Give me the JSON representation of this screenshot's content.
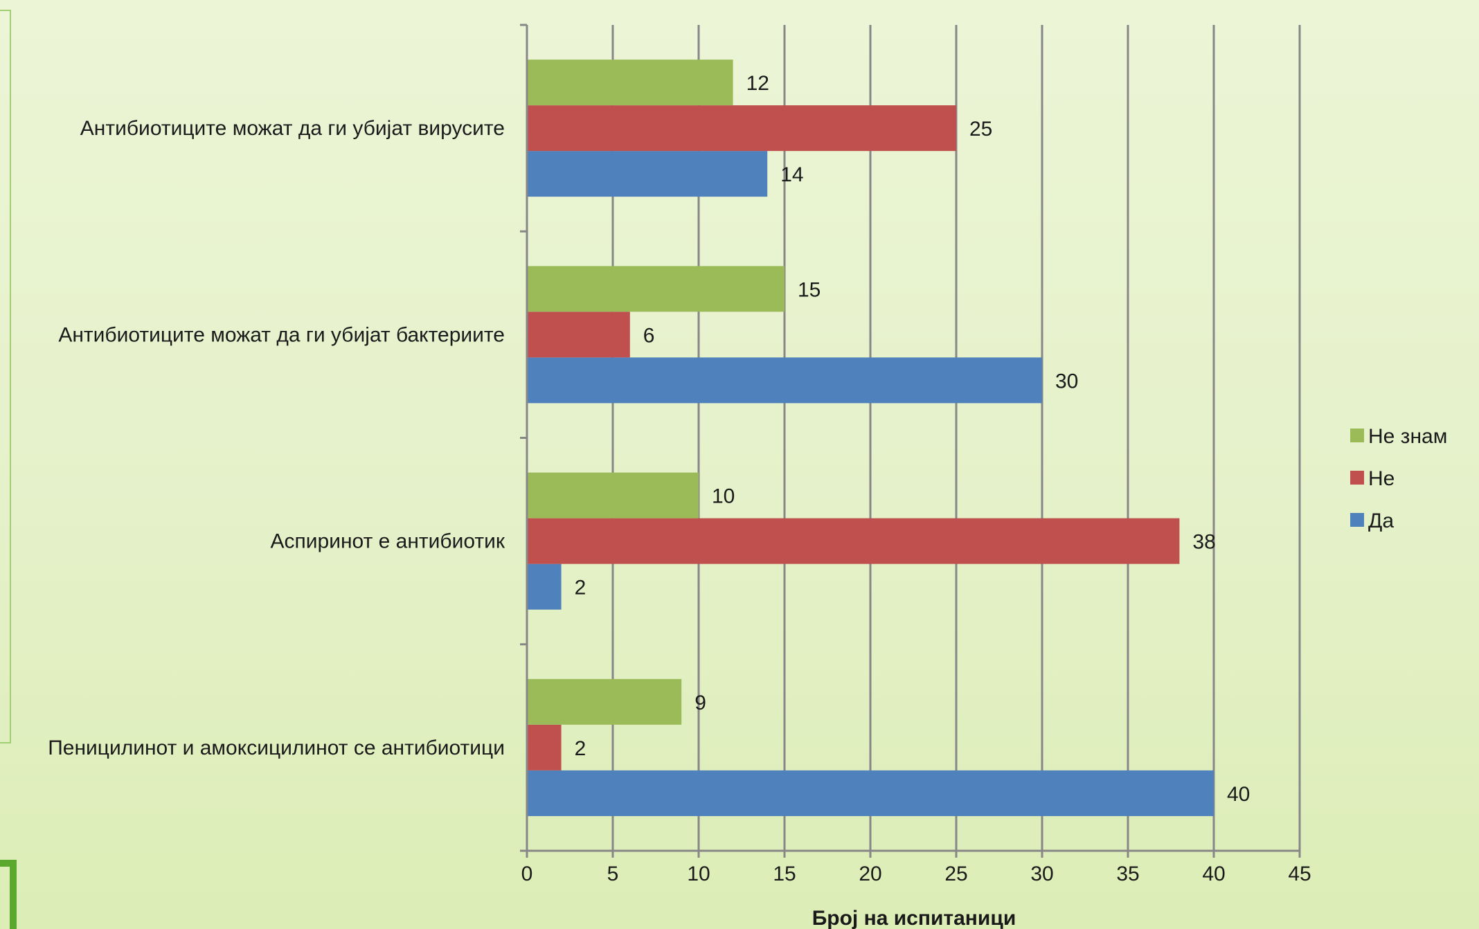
{
  "chart_data": {
    "type": "bar",
    "orientation": "horizontal",
    "categories": [
      "Пеницилинот и амоксицилинот се антибиотици",
      "Аспиринот е антибиотик",
      "Антибиотиците  можат да ги убијат бактериите",
      "Антибиотиците  можат да ги убијат вирусите"
    ],
    "series": [
      {
        "name": "Да",
        "color": "#4f81bd",
        "values": [
          40,
          2,
          30,
          14
        ]
      },
      {
        "name": "Не",
        "color": "#c0504d",
        "values": [
          2,
          38,
          6,
          25
        ]
      },
      {
        "name": "Не знам",
        "color": "#9bbb59",
        "values": [
          9,
          10,
          15,
          12
        ]
      }
    ],
    "legend_order": [
      "Не знам",
      "Не",
      "Да"
    ],
    "xlabel": "Број на испитаници",
    "ylabel": "",
    "title": "",
    "xlim": [
      0,
      45
    ],
    "xticks": [
      0,
      5,
      10,
      15,
      20,
      25,
      30,
      35,
      40,
      45
    ],
    "grid": "vertical",
    "legend_position": "right",
    "data_labels": true
  }
}
